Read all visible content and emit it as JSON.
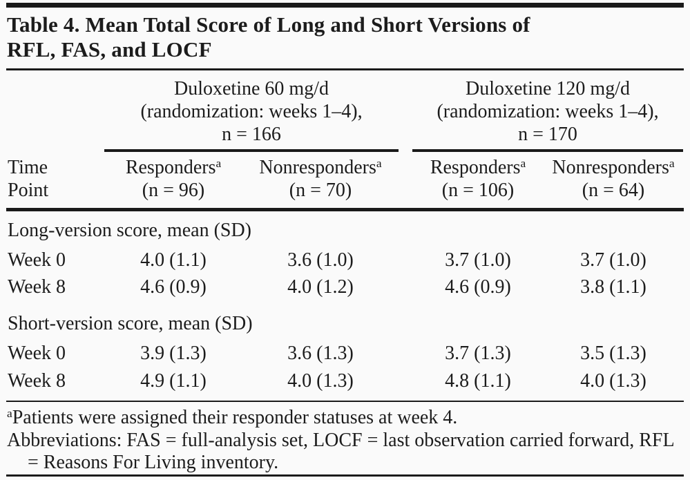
{
  "title": {
    "line1": "Table 4. Mean Total Score of Long and Short Versions of",
    "line2": "RFL, FAS, and LOCF"
  },
  "column_groups": [
    {
      "lines": [
        "Duloxetine 60 mg/d",
        "(randomization: weeks 1–4),",
        "n = 166"
      ]
    },
    {
      "lines": [
        "Duloxetine 120 mg/d",
        "(randomization: weeks 1–4),",
        "n = 170"
      ]
    }
  ],
  "stub_header": {
    "line1": "Time",
    "line2": "Point"
  },
  "column_headers": [
    {
      "label": "Responders",
      "sup": "a",
      "n": "(n = 96)"
    },
    {
      "label": "Nonresponders",
      "sup": "a",
      "n": "(n = 70)"
    },
    {
      "label": "Responders",
      "sup": "a",
      "n": "(n = 106)"
    },
    {
      "label": "Nonresponders",
      "sup": "a",
      "n": "(n = 64)"
    }
  ],
  "sections": [
    {
      "header": "Long-version score, mean (SD)",
      "rows": [
        {
          "label": "Week 0",
          "values": [
            "4.0 (1.1)",
            "3.6 (1.0)",
            "3.7 (1.0)",
            "3.7 (1.0)"
          ]
        },
        {
          "label": "Week 8",
          "values": [
            "4.6 (0.9)",
            "4.0 (1.2)",
            "4.6 (0.9)",
            "3.8 (1.1)"
          ]
        }
      ]
    },
    {
      "header": "Short-version score, mean (SD)",
      "rows": [
        {
          "label": "Week 0",
          "values": [
            "3.9 (1.3)",
            "3.6 (1.3)",
            "3.7 (1.3)",
            "3.5 (1.3)"
          ]
        },
        {
          "label": "Week 8",
          "values": [
            "4.9 (1.1)",
            "4.0 (1.3)",
            "4.8 (1.1)",
            "4.0 (1.3)"
          ]
        }
      ]
    }
  ],
  "footnotes": [
    {
      "sup": "a",
      "text": "Patients were assigned their responder statuses at week 4."
    },
    {
      "text": "Abbreviations: FAS = full-analysis set, LOCF = last observation carried forward, RFL = Reasons For Living inventory."
    }
  ],
  "colors": {
    "text": "#1c1c1c",
    "rule": "#1a1a1a",
    "background": "#fafafa"
  }
}
